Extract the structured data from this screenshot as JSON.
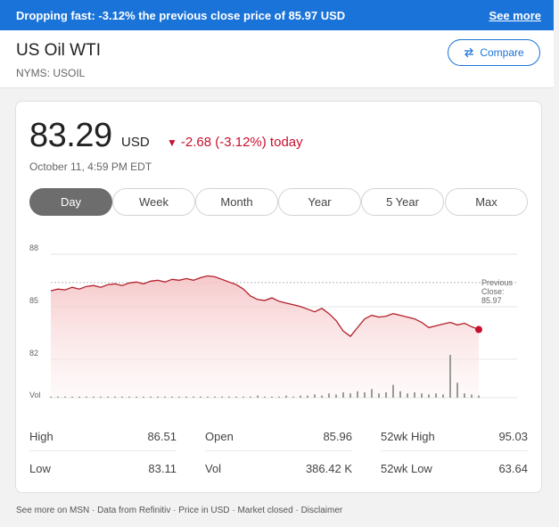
{
  "banner": {
    "message": "Dropping fast: -3.12% the previous close price of 85.97 USD",
    "see_more": "See more"
  },
  "header": {
    "title": "US Oil WTI",
    "ticker": "NYMS: USOIL",
    "compare_label": "Compare"
  },
  "quote": {
    "price": "83.29",
    "currency": "USD",
    "change": "-2.68 (-3.12%) today",
    "timestamp": "October 11, 4:59 PM EDT"
  },
  "tabs": [
    "Day",
    "Week",
    "Month",
    "Year",
    "5 Year",
    "Max"
  ],
  "active_tab": "Day",
  "colors": {
    "accent": "#1a73d8",
    "down": "#c8102e",
    "area_fill": "#f5c6c8",
    "volume": "#9a9a9a"
  },
  "chart_data": {
    "type": "area",
    "y_ticks": [
      "88",
      "85",
      "82"
    ],
    "ylim": [
      79.5,
      88
    ],
    "volume_label": "Vol",
    "previous_close_label": [
      "Previous",
      "Close:",
      "85.97"
    ],
    "previous_close": 85.97,
    "series": [
      {
        "values": [
          85.5,
          85.6,
          85.55,
          85.7,
          85.6,
          85.75,
          85.8,
          85.7,
          85.85,
          85.9,
          85.8,
          85.95,
          86.0,
          85.9,
          86.05,
          86.1,
          86.0,
          86.15,
          86.1,
          86.2,
          86.1,
          86.25,
          86.35,
          86.3,
          86.15,
          86.0,
          85.85,
          85.6,
          85.2,
          85.0,
          84.95,
          85.1,
          84.9,
          84.8,
          84.7,
          84.6,
          84.45,
          84.3,
          84.5,
          84.2,
          83.8,
          83.2,
          82.9,
          83.4,
          83.9,
          84.1,
          84.0,
          84.05,
          84.2,
          84.1,
          84.0,
          83.9,
          83.7,
          83.4,
          83.5,
          83.6,
          83.7,
          83.55,
          83.65,
          83.45,
          83.29
        ]
      }
    ],
    "volume": [
      1,
      1,
      1,
      1,
      1,
      1,
      1,
      1,
      1,
      1,
      1,
      1,
      1,
      1,
      1,
      1,
      1,
      1,
      1,
      1,
      1,
      1,
      1,
      1,
      1,
      1,
      1,
      1,
      1,
      2,
      1,
      1,
      1,
      2,
      1,
      2,
      2,
      3,
      2,
      4,
      3,
      5,
      4,
      6,
      5,
      8,
      4,
      5,
      12,
      6,
      4,
      5,
      4,
      3,
      4,
      3,
      40,
      14,
      4,
      3,
      2
    ]
  },
  "stats": {
    "high_label": "High",
    "high": "86.51",
    "open_label": "Open",
    "open": "85.96",
    "wk52_high_label": "52wk High",
    "wk52_high": "95.03",
    "low_label": "Low",
    "low": "83.11",
    "vol_label": "Vol",
    "vol": "386.42 K",
    "wk52_low_label": "52wk Low",
    "wk52_low": "63.64"
  },
  "footer": [
    "See more on MSN",
    "Data from Refinitiv",
    "Price in USD",
    "Market closed",
    "Disclaimer"
  ]
}
